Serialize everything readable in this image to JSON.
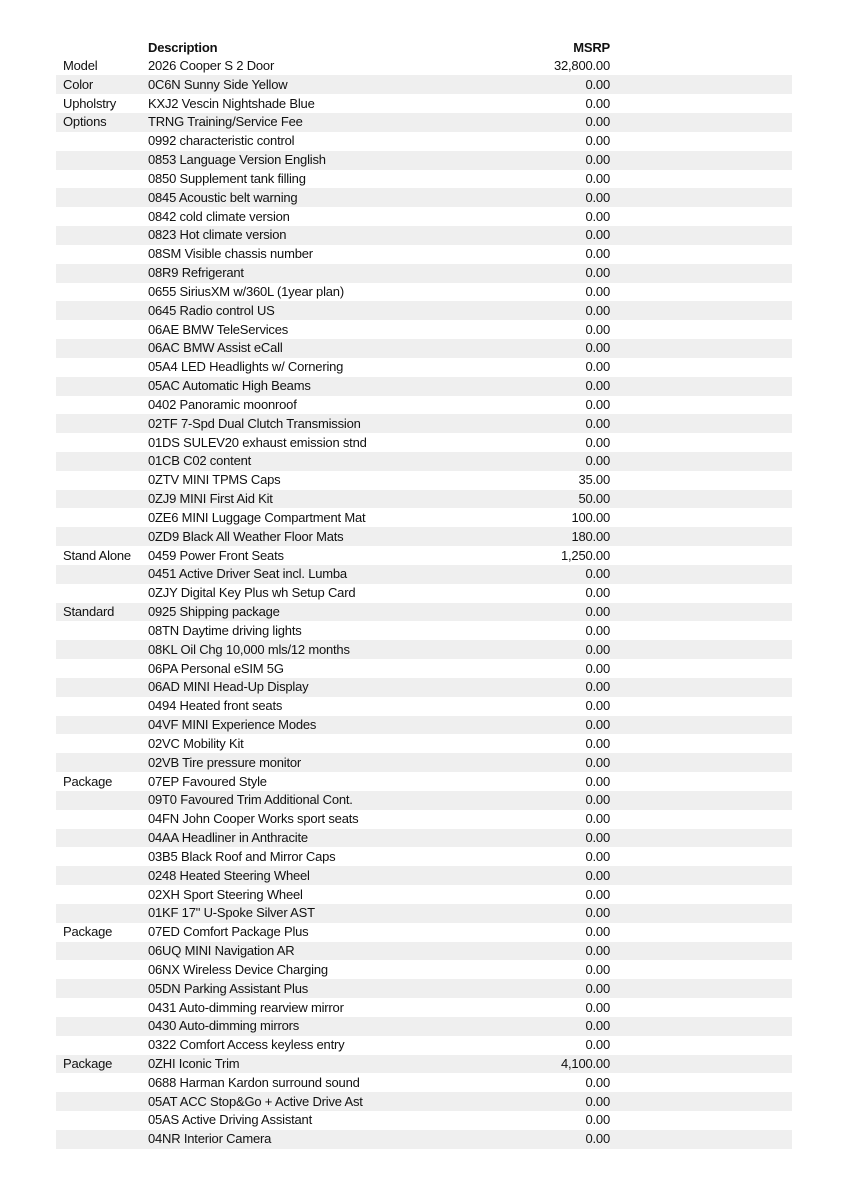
{
  "header": {
    "description": "Description",
    "msrp": "MSRP"
  },
  "rows": [
    {
      "category": "Model",
      "description": "2026 Cooper S 2 Door",
      "msrp": "32,800.00"
    },
    {
      "category": "Color",
      "description": "0C6N Sunny Side Yellow",
      "msrp": "0.00"
    },
    {
      "category": "Upholstry",
      "description": "KXJ2 Vescin Nightshade Blue",
      "msrp": "0.00"
    },
    {
      "category": "Options",
      "description": "TRNG Training/Service Fee",
      "msrp": "0.00"
    },
    {
      "description": "0992 characteristic control",
      "msrp": "0.00"
    },
    {
      "description": "0853 Language Version English",
      "msrp": "0.00"
    },
    {
      "description": "0850 Supplement tank filling",
      "msrp": "0.00"
    },
    {
      "description": "0845 Acoustic belt warning",
      "msrp": "0.00"
    },
    {
      "description": "0842 cold climate version",
      "msrp": "0.00"
    },
    {
      "description": "0823 Hot climate version",
      "msrp": "0.00"
    },
    {
      "description": "08SM Visible chassis number",
      "msrp": "0.00"
    },
    {
      "description": "08R9 Refrigerant",
      "msrp": "0.00"
    },
    {
      "description": "0655 SiriusXM w/360L (1year plan)",
      "msrp": "0.00"
    },
    {
      "description": "0645 Radio control US",
      "msrp": "0.00"
    },
    {
      "description": "06AE BMW TeleServices",
      "msrp": "0.00"
    },
    {
      "description": "06AC BMW Assist eCall",
      "msrp": "0.00"
    },
    {
      "description": "05A4 LED Headlights w/ Cornering",
      "msrp": "0.00"
    },
    {
      "description": "05AC Automatic High Beams",
      "msrp": "0.00"
    },
    {
      "description": "0402 Panoramic moonroof",
      "msrp": "0.00"
    },
    {
      "description": "02TF 7-Spd Dual Clutch Transmission",
      "msrp": "0.00"
    },
    {
      "description": "01DS SULEV20 exhaust emission stnd",
      "msrp": "0.00"
    },
    {
      "description": "01CB C02 content",
      "msrp": "0.00"
    },
    {
      "description": "0ZTV MINI TPMS Caps",
      "msrp": "35.00"
    },
    {
      "description": "0ZJ9 MINI First Aid Kit",
      "msrp": "50.00"
    },
    {
      "description": "0ZE6 MINI Luggage Compartment Mat",
      "msrp": "100.00"
    },
    {
      "description": "0ZD9 Black All Weather Floor Mats",
      "msrp": "180.00"
    },
    {
      "category": "Stand Alone",
      "description": "0459 Power Front Seats",
      "msrp": "1,250.00"
    },
    {
      "description": "0451 Active Driver Seat incl. Lumba",
      "msrp": "0.00"
    },
    {
      "description": "0ZJY Digital Key Plus wh Setup Card",
      "msrp": "0.00"
    },
    {
      "category": "Standard",
      "description": "0925 Shipping package",
      "msrp": "0.00"
    },
    {
      "description": "08TN Daytime driving lights",
      "msrp": "0.00"
    },
    {
      "description": "08KL Oil Chg 10,000 mls/12 months",
      "msrp": "0.00"
    },
    {
      "description": "06PA Personal eSIM 5G",
      "msrp": "0.00"
    },
    {
      "description": "06AD MINI Head-Up Display",
      "msrp": "0.00"
    },
    {
      "description": "0494 Heated front seats",
      "msrp": "0.00"
    },
    {
      "description": "04VF MINI Experience Modes",
      "msrp": "0.00"
    },
    {
      "description": "02VC Mobility Kit",
      "msrp": "0.00"
    },
    {
      "description": "02VB Tire pressure monitor",
      "msrp": "0.00"
    },
    {
      "category": "Package",
      "description": "07EP Favoured Style",
      "msrp": "0.00"
    },
    {
      "description": "09T0 Favoured Trim Additional Cont.",
      "msrp": "0.00"
    },
    {
      "description": "04FN John Cooper Works sport seats",
      "msrp": "0.00"
    },
    {
      "description": "04AA Headliner in Anthracite",
      "msrp": "0.00"
    },
    {
      "description": "03B5 Black Roof and Mirror Caps",
      "msrp": "0.00"
    },
    {
      "description": "0248 Heated Steering Wheel",
      "msrp": "0.00"
    },
    {
      "description": "02XH Sport Steering Wheel",
      "msrp": "0.00"
    },
    {
      "description": "01KF 17\" U-Spoke Silver AST",
      "msrp": "0.00"
    },
    {
      "category": "Package",
      "description": "07ED Comfort Package Plus",
      "msrp": "0.00"
    },
    {
      "description": "06UQ MINI Navigation AR",
      "msrp": "0.00"
    },
    {
      "description": "06NX Wireless Device Charging",
      "msrp": "0.00"
    },
    {
      "description": "05DN Parking Assistant Plus",
      "msrp": "0.00"
    },
    {
      "description": "0431 Auto-dimming rearview mirror",
      "msrp": "0.00"
    },
    {
      "description": "0430 Auto-dimming mirrors",
      "msrp": "0.00"
    },
    {
      "description": "0322 Comfort Access keyless entry",
      "msrp": "0.00"
    },
    {
      "category": "Package",
      "description": "0ZHI Iconic Trim",
      "msrp": "4,100.00"
    },
    {
      "description": "0688 Harman Kardon surround sound",
      "msrp": "0.00"
    },
    {
      "description": "05AT ACC Stop&Go + Active Drive Ast",
      "msrp": "0.00"
    },
    {
      "description": "05AS Active Driving Assistant",
      "msrp": "0.00"
    },
    {
      "description": "04NR Interior Camera",
      "msrp": "0.00"
    }
  ]
}
